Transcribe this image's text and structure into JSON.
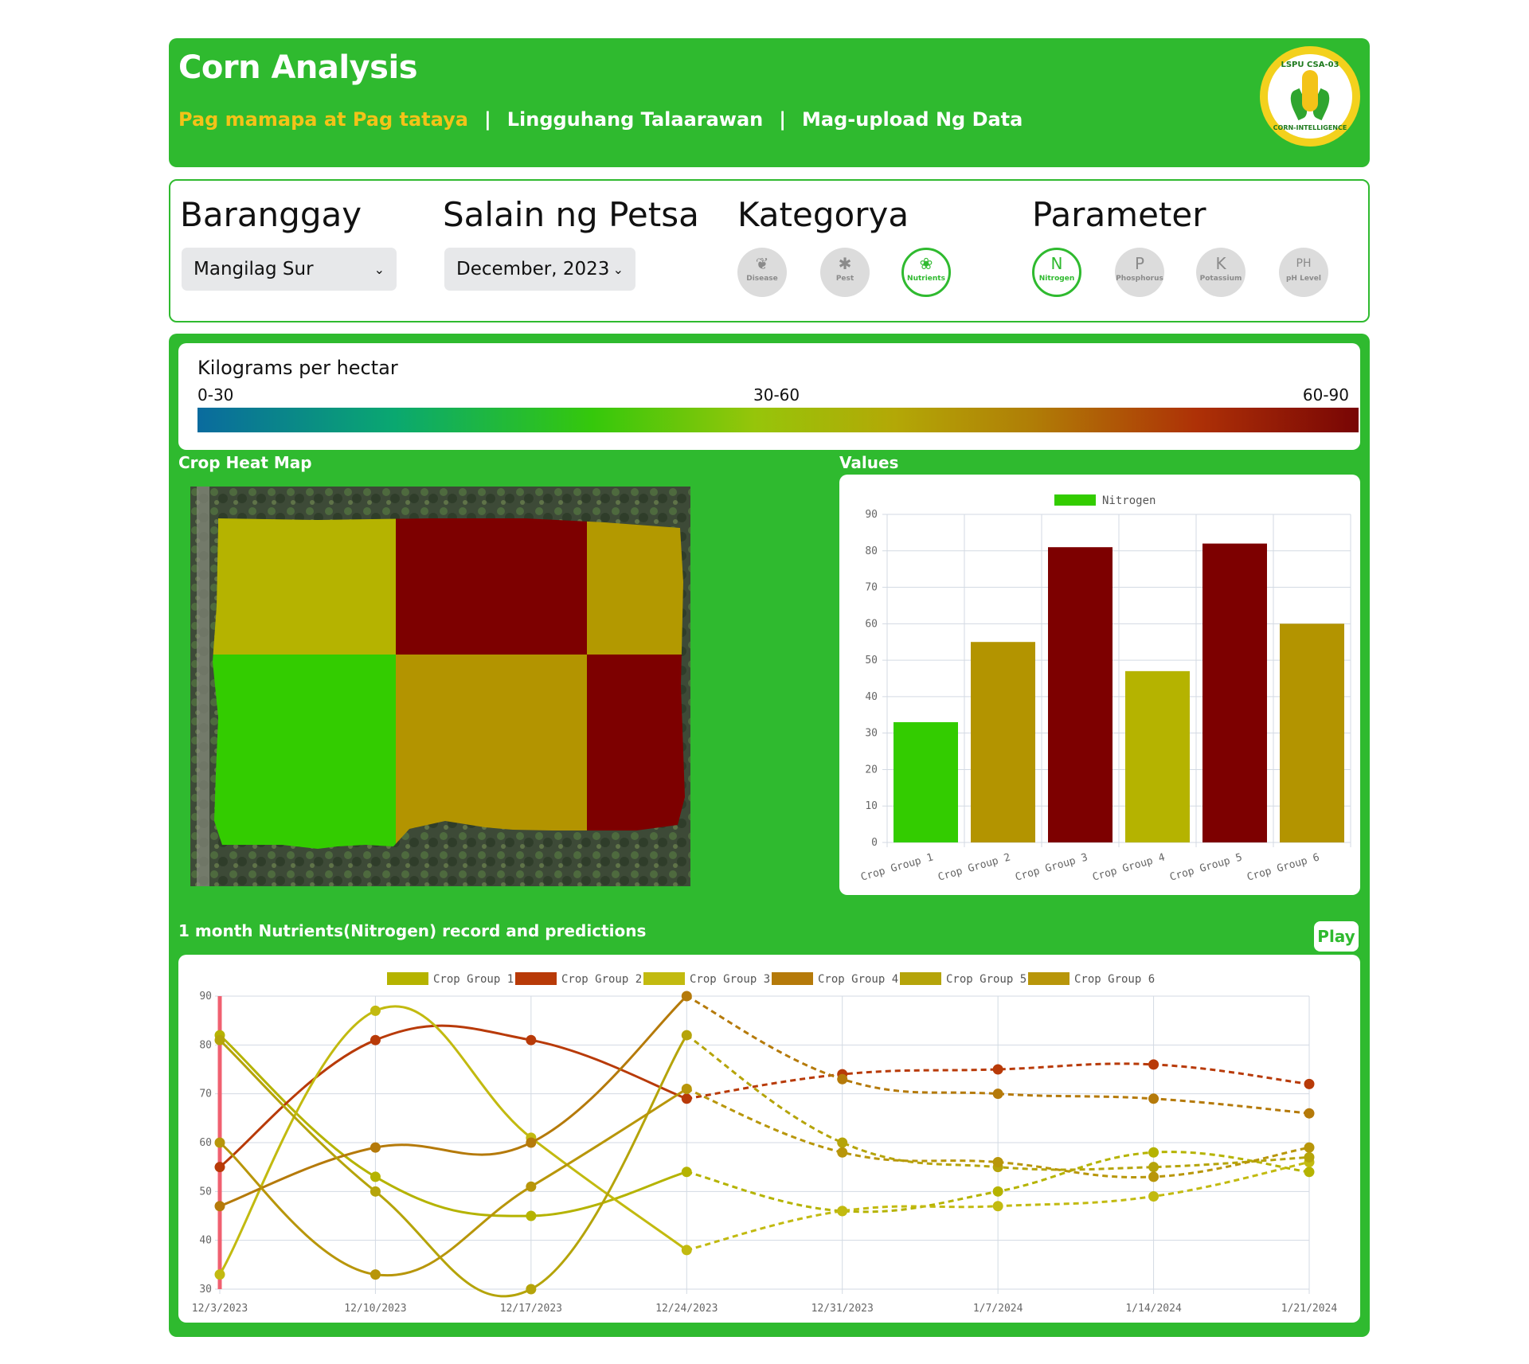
{
  "header": {
    "title": "Corn Analysis",
    "nav": [
      {
        "label": "Pag mamapa at Pag tataya",
        "active": true
      },
      {
        "label": "Lingguhang Talaarawan",
        "active": false
      },
      {
        "label": "Mag-upload Ng Data",
        "active": false
      }
    ],
    "separator": "|",
    "logo": {
      "top_text": "LSPU CSA-03",
      "bottom_text": "CORN-INTELLIGENCE"
    }
  },
  "filters": {
    "barangay": {
      "heading": "Baranggay",
      "selected": "Mangilag Sur"
    },
    "date": {
      "heading": "Salain ng Petsa",
      "selected": "December, 2023"
    },
    "category": {
      "heading": "Kategorya",
      "items": [
        {
          "label": "Disease",
          "icon": "disease-icon",
          "glyph": "❦",
          "selected": false
        },
        {
          "label": "Pest",
          "icon": "pest-icon",
          "glyph": "✱",
          "selected": false
        },
        {
          "label": "Nutrients",
          "icon": "nutrients-icon",
          "glyph": "❀",
          "selected": true
        }
      ]
    },
    "parameter": {
      "heading": "Parameter",
      "items": [
        {
          "label": "Nitrogen",
          "glyph": "N",
          "selected": true
        },
        {
          "label": "Phosphorus",
          "glyph": "P",
          "selected": false
        },
        {
          "label": "Potassium",
          "glyph": "K",
          "selected": false
        },
        {
          "label": "pH Level",
          "glyph": "PH",
          "selected": false
        }
      ]
    }
  },
  "legend": {
    "title": "Kilograms per hectar",
    "ranges": [
      "0-30",
      "30-60",
      "60-90"
    ]
  },
  "heatmap": {
    "title": "Crop Heat Map",
    "cells": [
      {
        "group": "Crop Group 1",
        "color": "#b5b300"
      },
      {
        "group": "Crop Group 2",
        "color": "#7d0000"
      },
      {
        "group": "Crop Group 3",
        "color": "#b39900"
      },
      {
        "group": "Crop Group 4",
        "color": "#33cc00"
      },
      {
        "group": "Crop Group 5",
        "color": "#b39400"
      },
      {
        "group": "Crop Group 6",
        "color": "#7d0000"
      }
    ]
  },
  "values_title": "Values",
  "bar_chart": {
    "type": "bar",
    "legend": "Nitrogen",
    "legend_color": "#33cc00",
    "categories": [
      "Crop Group 1",
      "Crop Group 2",
      "Crop Group 3",
      "Crop Group 4",
      "Crop Group 5",
      "Crop Group 6"
    ],
    "values": [
      33,
      55,
      81,
      47,
      82,
      60
    ],
    "colors": [
      "#33cc00",
      "#b39400",
      "#7d0000",
      "#b5b300",
      "#7d0000",
      "#b39400"
    ],
    "ylim": [
      0,
      90
    ],
    "yticks": [
      0,
      10,
      20,
      30,
      40,
      50,
      60,
      70,
      80,
      90
    ],
    "grid": true,
    "legend_position": "top"
  },
  "record_title": "1 month Nutrients(Nitrogen) record and predictions",
  "play_label": "Play",
  "chart_data": {
    "type": "line",
    "x": [
      "12/3/2023",
      "12/10/2023",
      "12/17/2023",
      "12/24/2023",
      "12/31/2023",
      "1/7/2024",
      "1/14/2024",
      "1/21/2024"
    ],
    "recorded_through": "12/24/2023",
    "predicted_from": "12/24/2023",
    "ylim": [
      30,
      90
    ],
    "yticks": [
      30,
      40,
      50,
      60,
      70,
      80,
      90
    ],
    "grid": true,
    "legend_position": "top",
    "marker_line_at": "12/3/2023",
    "marker_line_color": "#f06070",
    "series": [
      {
        "name": "Crop Group 1",
        "color": "#b5b300",
        "values": [
          82,
          53,
          45,
          54,
          46,
          50,
          58,
          54
        ]
      },
      {
        "name": "Crop Group 2",
        "color": "#b83a08",
        "values": [
          55,
          81,
          81,
          69,
          74,
          75,
          76,
          72
        ]
      },
      {
        "name": "Crop Group 3",
        "color": "#c2ba10",
        "values": [
          33,
          87,
          61,
          38,
          46,
          47,
          49,
          56
        ]
      },
      {
        "name": "Crop Group 4",
        "color": "#b57a0a",
        "values": [
          47,
          59,
          60,
          90,
          73,
          70,
          69,
          66
        ]
      },
      {
        "name": "Crop Group 5",
        "color": "#b5a40a",
        "values": [
          81,
          50,
          30,
          82,
          60,
          55,
          55,
          57
        ]
      },
      {
        "name": "Crop Group 6",
        "color": "#b8960a",
        "values": [
          60,
          33,
          51,
          71,
          58,
          56,
          53,
          59
        ]
      }
    ]
  }
}
